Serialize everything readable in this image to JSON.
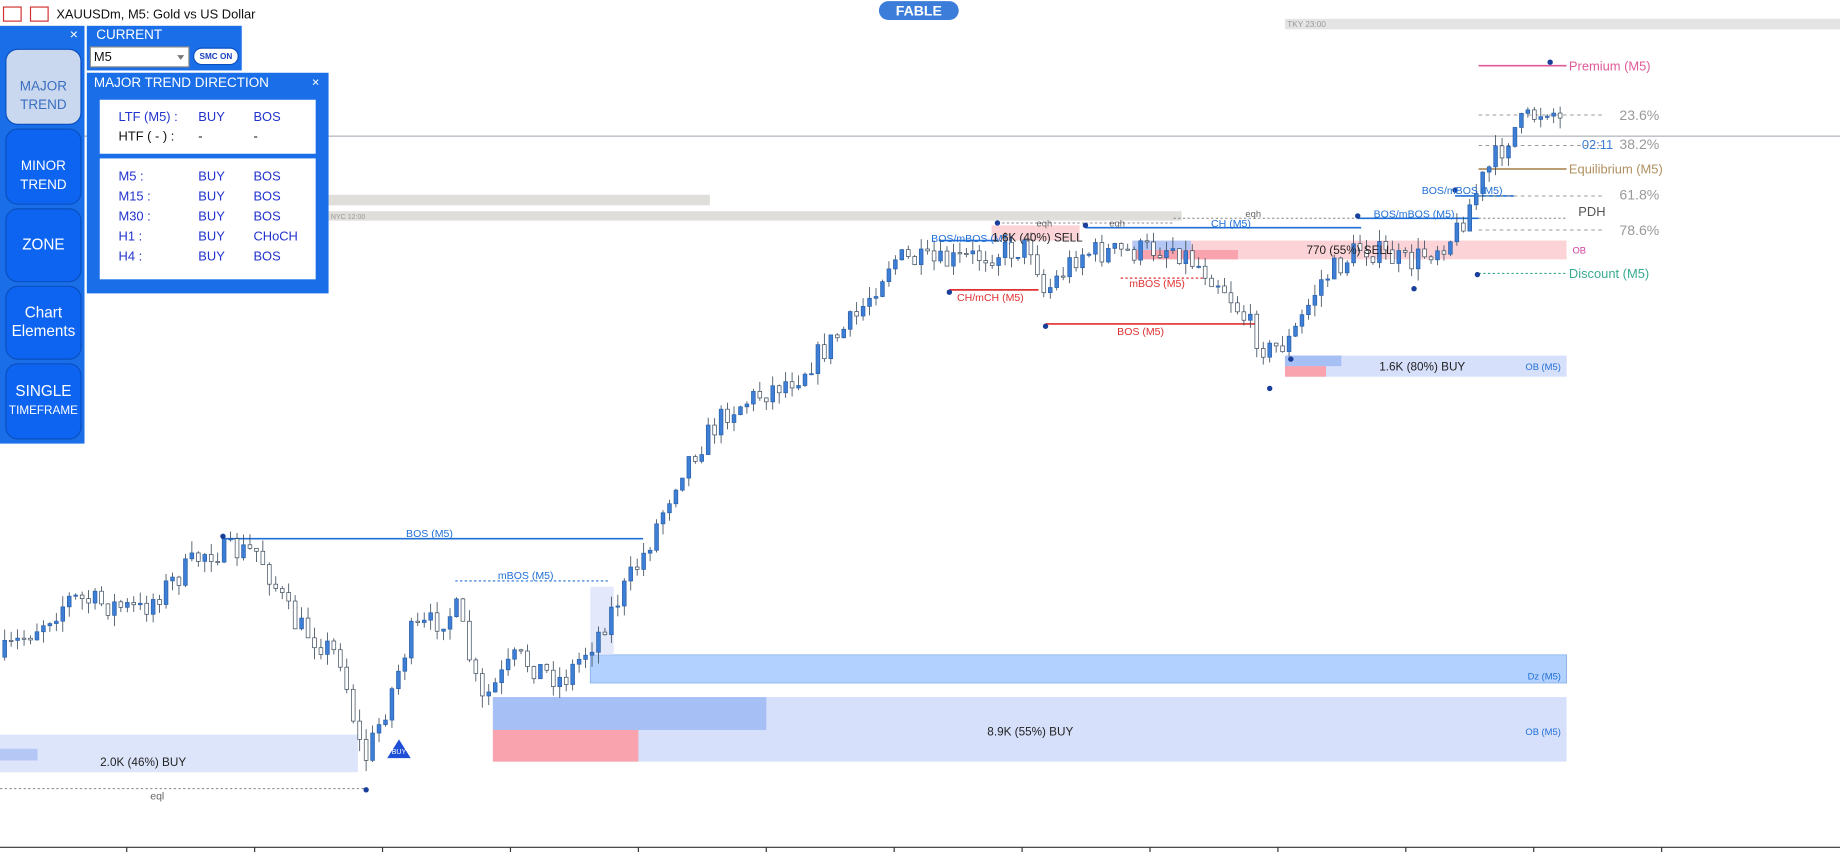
{
  "header": {
    "title": "XAUUSDm, M5:  Gold vs US Dollar",
    "brand": "FABLE"
  },
  "sidebar": {
    "close": "×",
    "buttons": [
      [
        "MAJOR",
        "TREND"
      ],
      [
        "MINOR",
        "TREND"
      ],
      [
        "ZONE"
      ],
      [
        "Chart",
        "Elements"
      ],
      [
        "SINGLE",
        "TIMEFRAME"
      ]
    ]
  },
  "current": {
    "title": "CURRENT",
    "timeframe": "M5",
    "toggle": "SMC ON"
  },
  "trend_panel": {
    "title": "MAJOR TREND DIRECTION",
    "close": "×",
    "summary": [
      [
        "LTF (M5) :",
        "BUY",
        "BOS"
      ],
      [
        "HTF ( - ) :",
        "-",
        "-"
      ]
    ],
    "timeframes": [
      [
        "M5 :",
        "BUY",
        "BOS"
      ],
      [
        "M15 :",
        "BUY",
        "BOS"
      ],
      [
        "M30 :",
        "BUY",
        "BOS"
      ],
      [
        "H1 :",
        "BUY",
        "CHoCH"
      ],
      [
        "H4 :",
        "BUY",
        "BOS"
      ]
    ]
  },
  "chart": {
    "labels": [
      "TKY 23:00",
      "NYC 12:00",
      "BOS (M5)",
      "mBOS (M5)",
      "2.0K (46%) BUY",
      "eql",
      "8.9K (55%) BUY",
      "OB (M5)",
      "Dz (M5)",
      "1.6K (80%) BUY",
      "OB (M5)",
      "BOS (M5)",
      "CH/mCH (M5)",
      "mBOS (M5)",
      "BOS/mBOS (M5)",
      "1.6K (40%) SELL",
      "eqh",
      "eqh",
      "CH (M5)",
      "eqh",
      "770 (55%) SELL",
      "OB",
      "BOS/mBOS (M5)",
      "BOS/mBOS (M5)",
      "Premium (M5)",
      "23.6%",
      "02:11",
      "38.2%",
      "Equilibrium (M5)",
      "61.8%",
      "PDH",
      "78.6%",
      "Discount (M5)",
      "BUY"
    ]
  }
}
